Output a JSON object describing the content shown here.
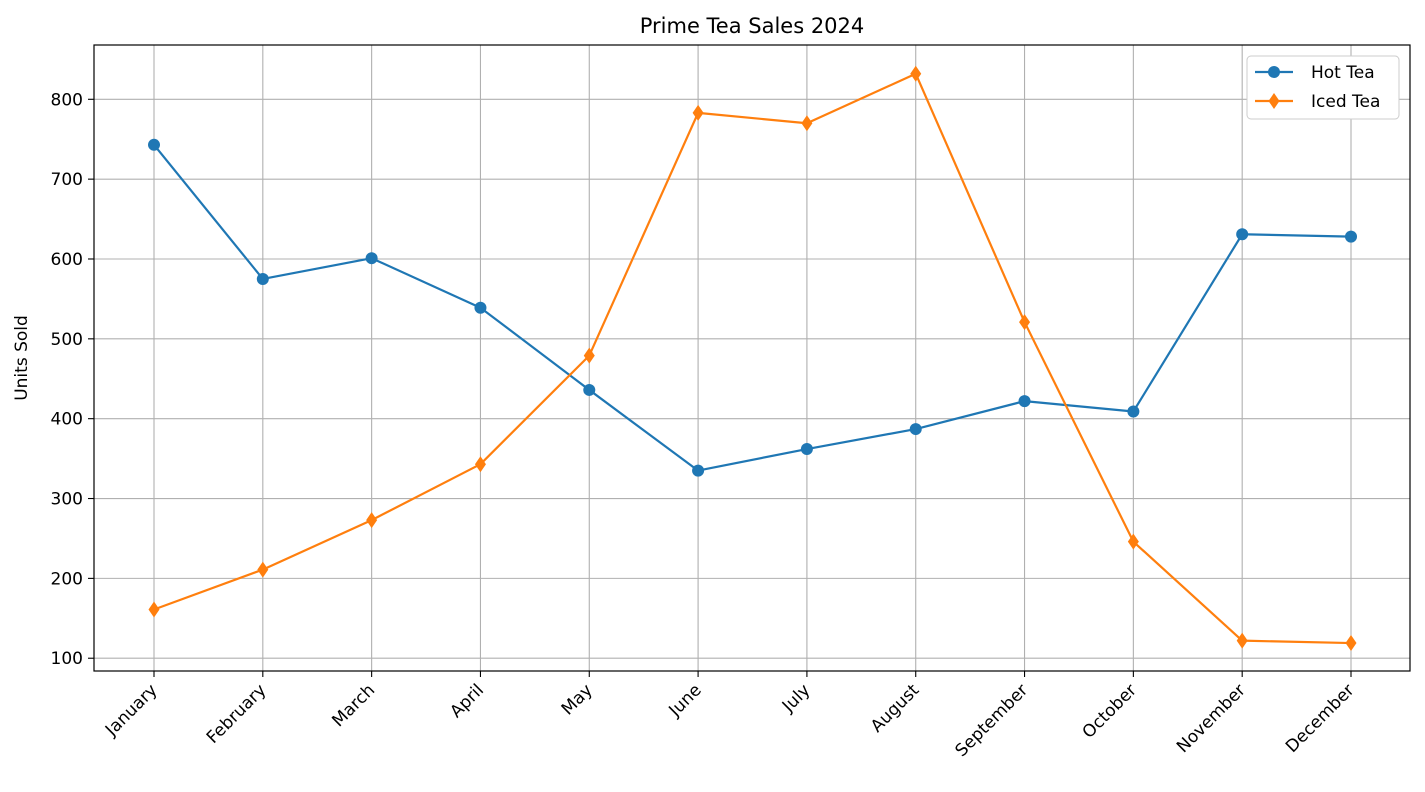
{
  "chart_data": {
    "type": "line",
    "title": "Prime Tea Sales 2024",
    "xlabel": "",
    "ylabel": "Units Sold",
    "categories": [
      "January",
      "February",
      "March",
      "April",
      "May",
      "June",
      "July",
      "August",
      "September",
      "October",
      "November",
      "December"
    ],
    "ylim": [
      84,
      868
    ],
    "yticks": [
      100,
      200,
      300,
      400,
      500,
      600,
      700,
      800
    ],
    "grid": true,
    "legend_position": "top-right",
    "series": [
      {
        "name": "Hot Tea",
        "color": "#1f77b4",
        "marker": "circle",
        "values": [
          743,
          575,
          601,
          539,
          436,
          335,
          362,
          387,
          422,
          409,
          631,
          628
        ]
      },
      {
        "name": "Iced Tea",
        "color": "#ff7f0e",
        "marker": "diamond",
        "values": [
          161,
          211,
          273,
          343,
          479,
          783,
          770,
          832,
          521,
          246,
          122,
          119
        ]
      }
    ]
  }
}
